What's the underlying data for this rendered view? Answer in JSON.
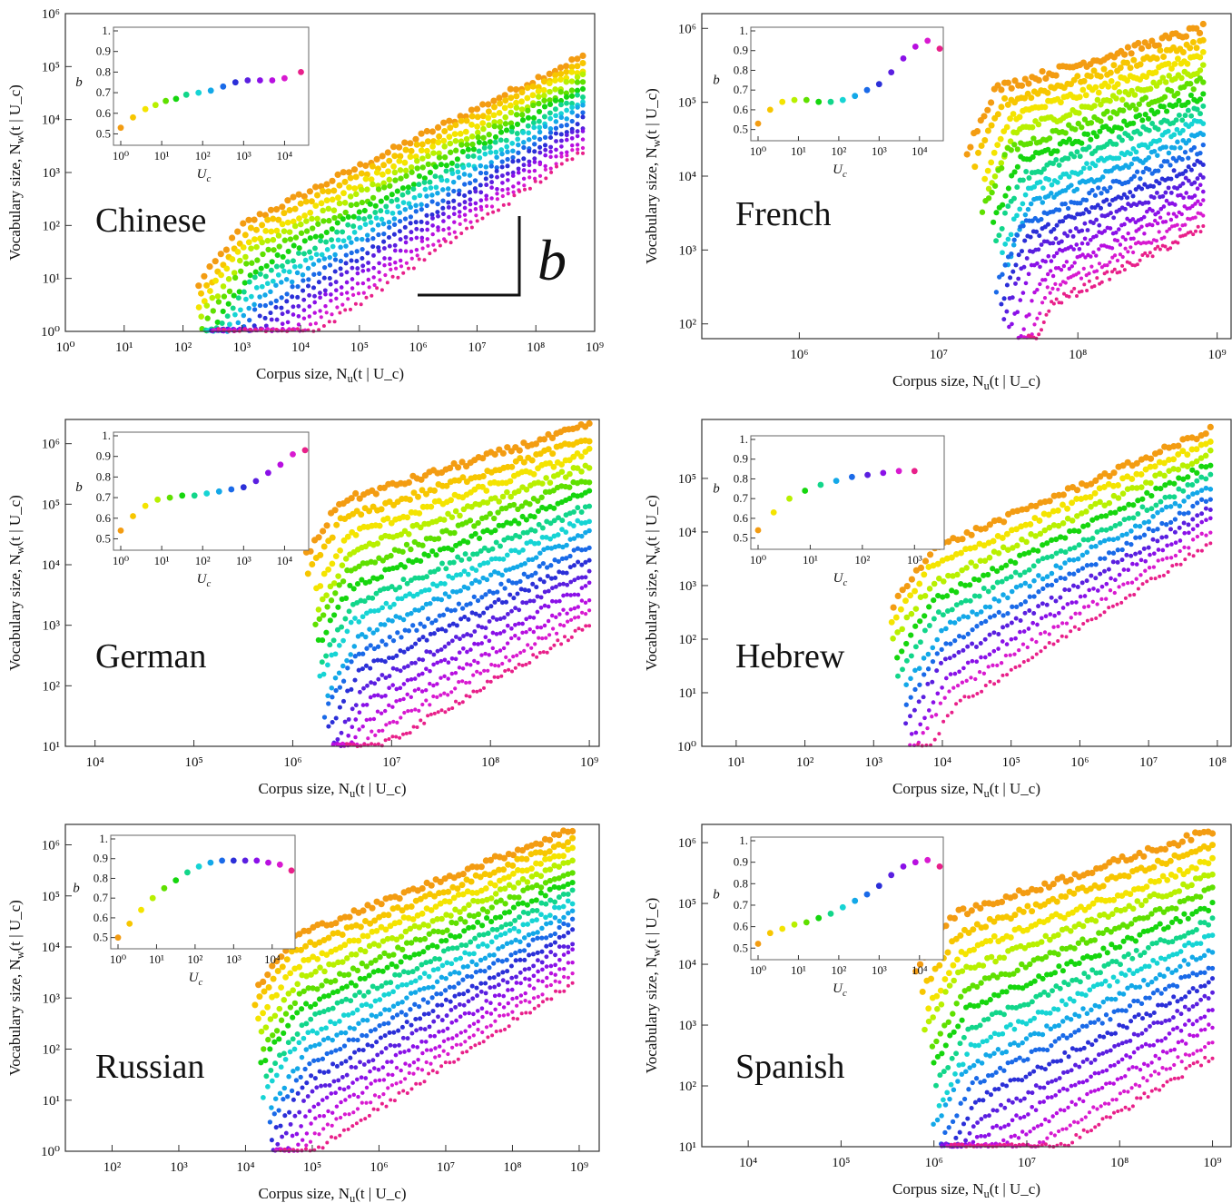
{
  "figure": {
    "y_label": "Vocabulary size, N_w(t | U_c)",
    "x_label": "Corpus size, N_u(t | U_c)",
    "inset_y_label": "b",
    "inset_x_label": "U_c",
    "slope_marker_label": "b"
  },
  "palette": [
    "#f39c12",
    "#f7c600",
    "#f4e400",
    "#b8f000",
    "#5fe000",
    "#16d60e",
    "#12d68a",
    "#16d4d4",
    "#13a8e8",
    "#1a6ae8",
    "#2b2fd8",
    "#5a1fe0",
    "#8a10e8",
    "#b80fe0",
    "#d81ad0",
    "#e8208a"
  ],
  "chart_data": [
    {
      "type": "scatter",
      "panel": "Chinese",
      "title": "Chinese",
      "xlim_exp": [
        0,
        9
      ],
      "ylim_exp": [
        0,
        6
      ],
      "x_ticks": [
        "10⁰",
        "10¹",
        "10²",
        "10³",
        "10⁴",
        "10⁵",
        "10⁶",
        "10⁷",
        "10⁸",
        "10⁹"
      ],
      "y_ticks": [
        "10⁰",
        "10¹",
        "10²",
        "10³",
        "10⁴",
        "10⁵",
        "10⁶"
      ],
      "slope_marker": true,
      "series_summary": {
        "n_series": 16,
        "x_start_exp": 2.2,
        "x_end_exp": 8.8,
        "top_y_end_exp": 5.2,
        "bottom_y_end_exp": 3.4,
        "slope_top": 0.55,
        "slope_bottom": 0.75
      },
      "inset": {
        "x_ticks": [
          "10⁰",
          "10¹",
          "10²",
          "10³",
          "10⁴"
        ],
        "y_ticks": [
          "0.5",
          "0.6",
          "0.7",
          "0.8",
          "0.9",
          "1."
        ],
        "x_exp": [
          0,
          0.3,
          0.6,
          0.85,
          1.1,
          1.35,
          1.6,
          1.9,
          2.2,
          2.5,
          2.8,
          3.1,
          3.4,
          3.7,
          4.0,
          4.4
        ],
        "b": [
          0.53,
          0.58,
          0.62,
          0.64,
          0.66,
          0.67,
          0.69,
          0.7,
          0.71,
          0.73,
          0.75,
          0.76,
          0.76,
          0.76,
          0.77,
          0.8
        ]
      }
    },
    {
      "type": "scatter",
      "panel": "French",
      "title": "French",
      "xlim_exp": [
        5.3,
        9.1
      ],
      "ylim_exp": [
        1.8,
        6.2
      ],
      "x_ticks": [
        "10⁶",
        "10⁷",
        "10⁸",
        "10⁹"
      ],
      "y_ticks": [
        "10²",
        "10³",
        "10⁴",
        "10⁵",
        "10⁶"
      ],
      "slope_marker": false,
      "series_summary": {
        "n_series": 16,
        "x_start_exp": 7.2,
        "x_end_exp": 8.9,
        "top_y_end_exp": 6.0,
        "bottom_y_end_exp": 3.3,
        "slope_top": 0.55,
        "slope_bottom": 0.95
      },
      "inset": {
        "x_ticks": [
          "10⁰",
          "10¹",
          "10²",
          "10³",
          "10⁴"
        ],
        "y_ticks": [
          "0.5",
          "0.6",
          "0.7",
          "0.8",
          "0.9",
          "1."
        ],
        "x_exp": [
          0,
          0.3,
          0.6,
          0.9,
          1.2,
          1.5,
          1.8,
          2.1,
          2.4,
          2.7,
          3.0,
          3.3,
          3.6,
          3.9,
          4.2,
          4.5
        ],
        "b": [
          0.53,
          0.6,
          0.64,
          0.65,
          0.65,
          0.64,
          0.64,
          0.65,
          0.67,
          0.7,
          0.73,
          0.79,
          0.86,
          0.92,
          0.95,
          0.91
        ]
      }
    },
    {
      "type": "scatter",
      "panel": "German",
      "title": "German",
      "xlim_exp": [
        3.7,
        9.1
      ],
      "ylim_exp": [
        1.0,
        6.4
      ],
      "x_ticks": [
        "10⁴",
        "10⁵",
        "10⁶",
        "10⁷",
        "10⁸",
        "10⁹"
      ],
      "y_ticks": [
        "10¹",
        "10²",
        "10³",
        "10⁴",
        "10⁵",
        "10⁶"
      ],
      "slope_marker": false,
      "series_summary": {
        "n_series": 16,
        "x_start_exp": 6.1,
        "x_end_exp": 9.0,
        "top_y_end_exp": 6.3,
        "bottom_y_end_exp": 3.0,
        "slope_top": 0.5,
        "slope_bottom": 0.95
      },
      "inset": {
        "x_ticks": [
          "10⁰",
          "10¹",
          "10²",
          "10³",
          "10⁴"
        ],
        "y_ticks": [
          "0.5",
          "0.6",
          "0.7",
          "0.8",
          "0.9",
          "1."
        ],
        "x_exp": [
          0,
          0.3,
          0.6,
          0.9,
          1.2,
          1.5,
          1.8,
          2.1,
          2.4,
          2.7,
          3.0,
          3.3,
          3.6,
          3.9,
          4.2,
          4.5
        ],
        "b": [
          0.54,
          0.61,
          0.66,
          0.69,
          0.7,
          0.71,
          0.71,
          0.72,
          0.73,
          0.74,
          0.75,
          0.78,
          0.82,
          0.86,
          0.91,
          0.93
        ]
      }
    },
    {
      "type": "scatter",
      "panel": "Hebrew",
      "title": "Hebrew",
      "xlim_exp": [
        0.5,
        8.2
      ],
      "ylim_exp": [
        0,
        6.1
      ],
      "x_ticks": [
        "10¹",
        "10²",
        "10³",
        "10⁴",
        "10⁵",
        "10⁶",
        "10⁷",
        "10⁸"
      ],
      "y_ticks": [
        "10⁰",
        "10¹",
        "10²",
        "10³",
        "10⁴",
        "10⁵"
      ],
      "slope_marker": false,
      "series_summary": {
        "n_series": 11,
        "x_start_exp": 3.2,
        "x_end_exp": 7.9,
        "top_y_end_exp": 5.9,
        "bottom_y_end_exp": 3.8,
        "slope_top": 0.55,
        "slope_bottom": 0.82
      },
      "inset": {
        "x_ticks": [
          "10⁰",
          "10¹",
          "10²",
          "10³"
        ],
        "y_ticks": [
          "0.5",
          "0.6",
          "0.7",
          "0.8",
          "0.9",
          "1."
        ],
        "x_exp": [
          0,
          0.3,
          0.6,
          0.9,
          1.2,
          1.5,
          1.8,
          2.1,
          2.4,
          2.7,
          3.0
        ],
        "b": [
          0.54,
          0.63,
          0.7,
          0.74,
          0.77,
          0.79,
          0.81,
          0.82,
          0.83,
          0.84,
          0.84
        ]
      }
    },
    {
      "type": "scatter",
      "panel": "Russian",
      "title": "Russian",
      "xlim_exp": [
        1.3,
        9.3
      ],
      "ylim_exp": [
        0,
        6.4
      ],
      "x_ticks": [
        "10²",
        "10³",
        "10⁴",
        "10⁵",
        "10⁶",
        "10⁷",
        "10⁸",
        "10⁹"
      ],
      "y_ticks": [
        "10⁰",
        "10¹",
        "10²",
        "10³",
        "10⁴",
        "10⁵",
        "10⁶"
      ],
      "slope_marker": false,
      "series_summary": {
        "n_series": 16,
        "x_start_exp": 4.1,
        "x_end_exp": 8.9,
        "top_y_end_exp": 6.3,
        "bottom_y_end_exp": 3.3,
        "slope_top": 0.5,
        "slope_bottom": 0.85
      },
      "inset": {
        "x_ticks": [
          "10⁰",
          "10¹",
          "10²",
          "10³",
          "10⁴"
        ],
        "y_ticks": [
          "0.5",
          "0.6",
          "0.7",
          "0.8",
          "0.9",
          "1."
        ],
        "x_exp": [
          0,
          0.3,
          0.6,
          0.9,
          1.2,
          1.5,
          1.8,
          2.1,
          2.4,
          2.7,
          3.0,
          3.3,
          3.6,
          3.9,
          4.2,
          4.5
        ],
        "b": [
          0.5,
          0.57,
          0.64,
          0.7,
          0.75,
          0.79,
          0.83,
          0.86,
          0.88,
          0.89,
          0.89,
          0.89,
          0.89,
          0.88,
          0.87,
          0.84
        ]
      }
    },
    {
      "type": "scatter",
      "panel": "Spanish",
      "title": "Spanish",
      "xlim_exp": [
        3.5,
        9.2
      ],
      "ylim_exp": [
        1.0,
        6.3
      ],
      "x_ticks": [
        "10⁴",
        "10⁵",
        "10⁶",
        "10⁷",
        "10⁸",
        "10⁹"
      ],
      "y_ticks": [
        "10¹",
        "10²",
        "10³",
        "10⁴",
        "10⁵",
        "10⁶"
      ],
      "slope_marker": false,
      "series_summary": {
        "n_series": 16,
        "x_start_exp": 5.8,
        "x_end_exp": 9.0,
        "top_y_end_exp": 6.2,
        "bottom_y_end_exp": 2.5,
        "slope_top": 0.5,
        "slope_bottom": 0.92
      },
      "inset": {
        "x_ticks": [
          "10⁰",
          "10¹",
          "10²",
          "10³",
          "10⁴"
        ],
        "y_ticks": [
          "0.5",
          "0.6",
          "0.7",
          "0.8",
          "0.9",
          "1."
        ],
        "x_exp": [
          0,
          0.3,
          0.6,
          0.9,
          1.2,
          1.5,
          1.8,
          2.1,
          2.4,
          2.7,
          3.0,
          3.3,
          3.6,
          3.9,
          4.2,
          4.5
        ],
        "b": [
          0.52,
          0.57,
          0.59,
          0.61,
          0.62,
          0.64,
          0.66,
          0.69,
          0.72,
          0.75,
          0.79,
          0.84,
          0.88,
          0.9,
          0.91,
          0.88
        ]
      }
    }
  ]
}
